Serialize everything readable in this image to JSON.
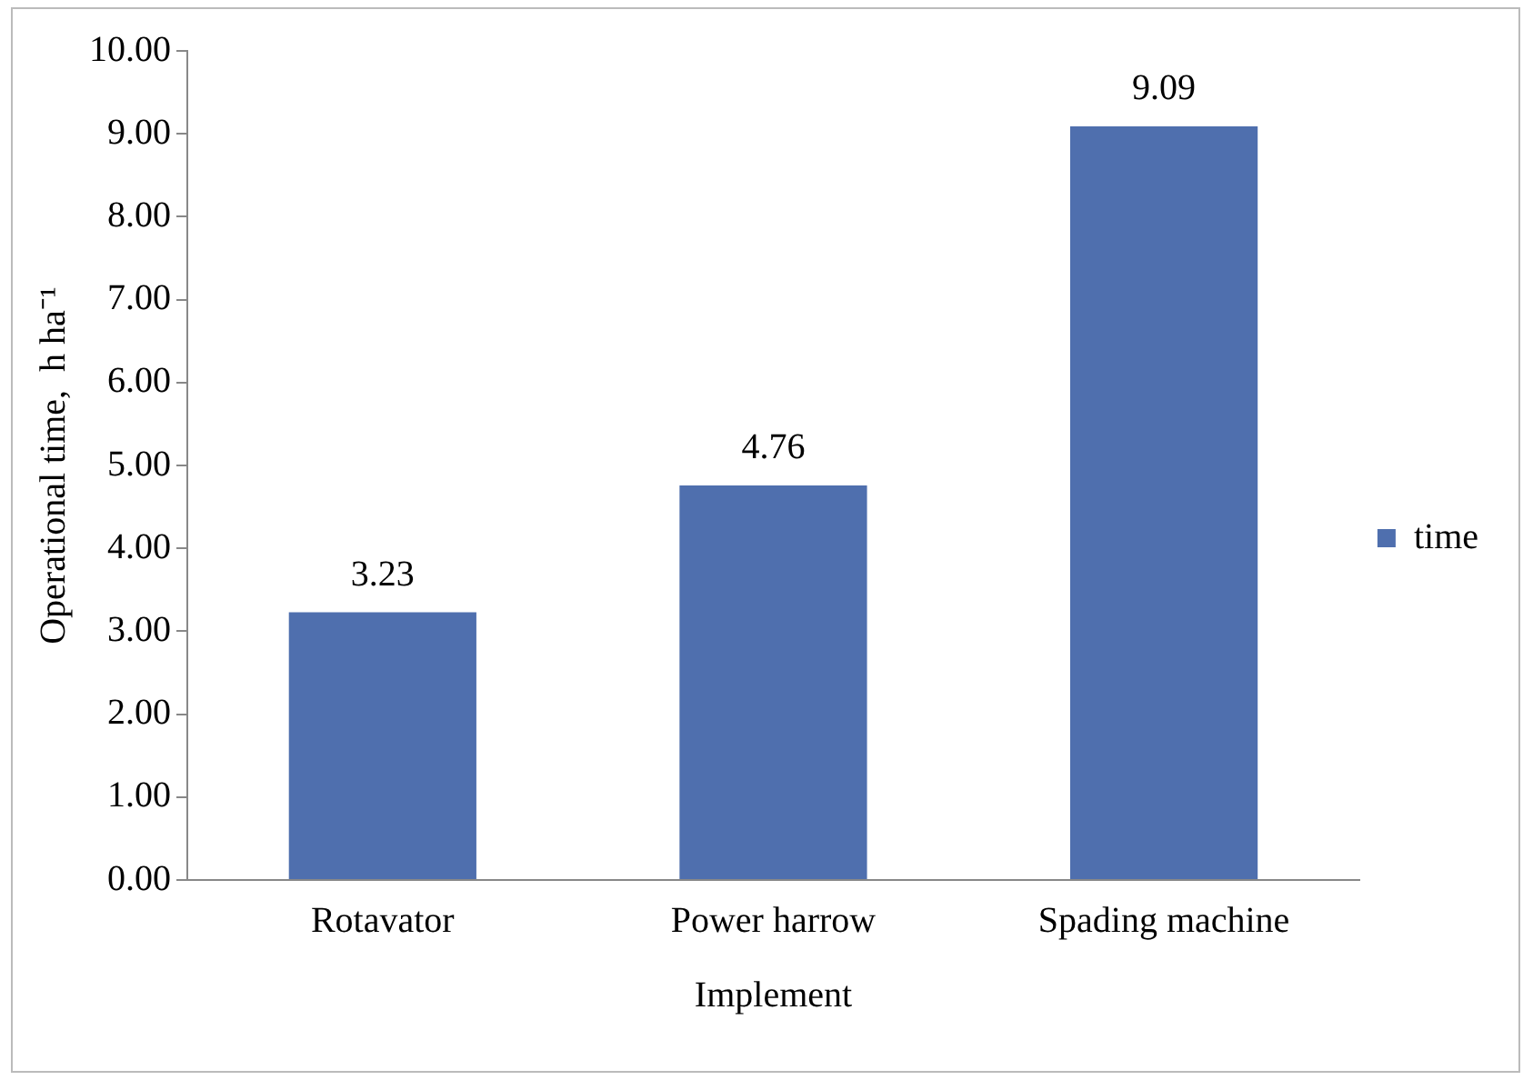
{
  "chart_data": {
    "type": "bar",
    "xlabel": "Implement",
    "ylabel": "Operational time,  h ha⁻¹",
    "categories": [
      "Rotavator",
      "Power harrow",
      "Spading machine"
    ],
    "series": [
      {
        "name": "time",
        "color": "#4f6fae",
        "values": [
          3.23,
          4.76,
          9.09
        ]
      }
    ],
    "ylim": [
      0,
      10
    ],
    "yticks": [
      {
        "value": 0,
        "label": "0.00"
      },
      {
        "value": 1,
        "label": "1.00"
      },
      {
        "value": 2,
        "label": "2.00"
      },
      {
        "value": 3,
        "label": "3.00"
      },
      {
        "value": 4,
        "label": "4.00"
      },
      {
        "value": 5,
        "label": "5.00"
      },
      {
        "value": 6,
        "label": "6.00"
      },
      {
        "value": 7,
        "label": "7.00"
      },
      {
        "value": 8,
        "label": "8.00"
      },
      {
        "value": 9,
        "label": "9.00"
      },
      {
        "value": 10,
        "label": "10.00"
      }
    ],
    "data_labels": true,
    "legend": "right",
    "grid": false
  }
}
